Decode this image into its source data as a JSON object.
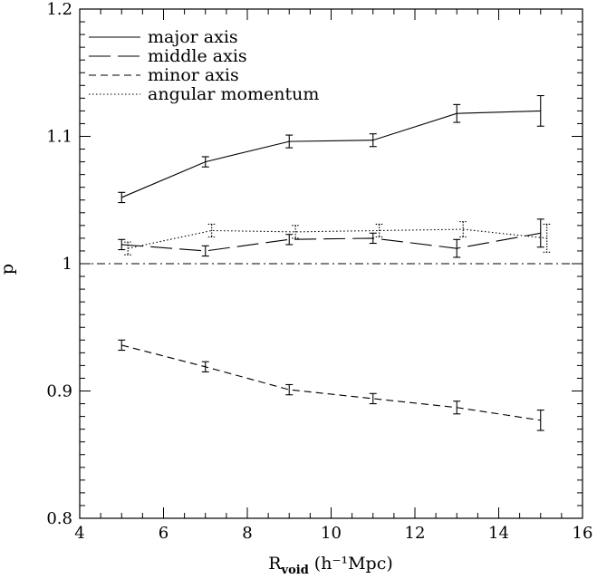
{
  "chart_data": {
    "type": "line",
    "xlabel": "R_void (h⁻¹Mpc)",
    "xlabel_main": "R",
    "xlabel_sub": "void",
    "xlabel_units": "(h⁻¹Mpc)",
    "ylabel": "p",
    "xlim": [
      4,
      16
    ],
    "ylim": [
      0.8,
      1.2
    ],
    "x_ticks": [
      "4",
      "6",
      "8",
      "10",
      "12",
      "14",
      "16"
    ],
    "y_ticks": [
      "0.8",
      "0.9",
      "1",
      "1.1",
      "1.2"
    ],
    "x_tick_values": [
      4,
      6,
      8,
      10,
      12,
      14,
      16
    ],
    "y_tick_values": [
      0.8,
      0.9,
      1.0,
      1.1,
      1.2
    ],
    "reference_line": {
      "y": 1.0,
      "style": "dash-dot"
    },
    "legend_position": "top-left",
    "grid": false,
    "series": [
      {
        "name": "major axis",
        "style": "solid",
        "x": [
          5,
          7,
          9,
          11,
          13,
          15
        ],
        "y": [
          1.052,
          1.08,
          1.096,
          1.097,
          1.118,
          1.12
        ],
        "err": [
          0.004,
          0.004,
          0.005,
          0.005,
          0.007,
          0.012
        ]
      },
      {
        "name": "middle axis",
        "style": "long-dash",
        "x": [
          5,
          7,
          9,
          11,
          13,
          15
        ],
        "y": [
          1.015,
          1.01,
          1.019,
          1.02,
          1.012,
          1.024
        ],
        "err": [
          0.004,
          0.004,
          0.004,
          0.004,
          0.007,
          0.011
        ]
      },
      {
        "name": "minor axis",
        "style": "short-dash",
        "x": [
          5,
          7,
          9,
          11,
          13,
          15
        ],
        "y": [
          0.936,
          0.919,
          0.901,
          0.894,
          0.887,
          0.877
        ],
        "err": [
          0.004,
          0.004,
          0.004,
          0.004,
          0.005,
          0.008
        ]
      },
      {
        "name": "angular momentum",
        "style": "dotted",
        "x": [
          5.15,
          7.15,
          9.15,
          11.15,
          13.15,
          15.15
        ],
        "y": [
          1.012,
          1.026,
          1.025,
          1.026,
          1.027,
          1.02
        ],
        "err": [
          0.005,
          0.005,
          0.005,
          0.005,
          0.006,
          0.011
        ]
      }
    ]
  }
}
